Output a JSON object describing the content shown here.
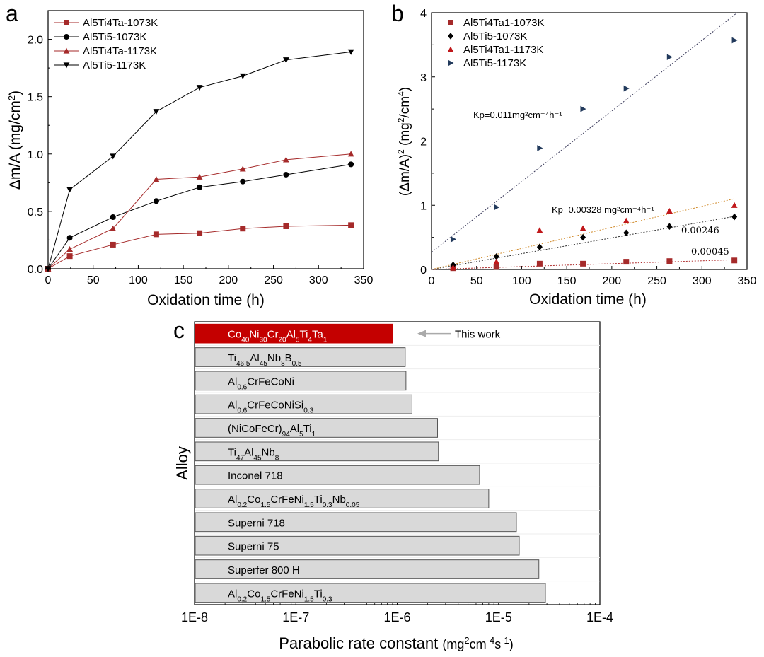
{
  "panels": {
    "a": "a",
    "b": "b",
    "c": "c"
  },
  "chart_data": [
    {
      "id": "a",
      "type": "line",
      "xlabel": "Oxidation time (h)",
      "ylabel_parts": [
        "Δm/A (mg/cm",
        "2",
        ")"
      ],
      "xlim": [
        0,
        350
      ],
      "ylim": [
        0,
        2.25
      ],
      "xticks": [
        0,
        50,
        100,
        150,
        200,
        250,
        300,
        350
      ],
      "yticks": [
        0.0,
        0.5,
        1.0,
        1.5,
        2.0
      ],
      "legend_position": "top-left",
      "series": [
        {
          "name": "Al5Ti4Ta-1073K",
          "marker": "square",
          "color": "#a52a2a",
          "x": [
            0,
            24,
            72,
            120,
            168,
            216,
            264,
            336
          ],
          "y": [
            0,
            0.11,
            0.21,
            0.3,
            0.31,
            0.35,
            0.37,
            0.38
          ]
        },
        {
          "name": "Al5Ti5-1073K",
          "marker": "circle",
          "color": "#000000",
          "x": [
            0,
            24,
            72,
            120,
            168,
            216,
            264,
            336
          ],
          "y": [
            0,
            0.27,
            0.45,
            0.59,
            0.71,
            0.76,
            0.82,
            0.91
          ]
        },
        {
          "name": "Al5Ti4Ta-1173K",
          "marker": "triangle-up",
          "color": "#a52a2a",
          "x": [
            0,
            24,
            72,
            120,
            168,
            216,
            264,
            336
          ],
          "y": [
            0,
            0.17,
            0.35,
            0.78,
            0.8,
            0.87,
            0.95,
            1.0
          ]
        },
        {
          "name": "Al5Ti5-1173K",
          "marker": "triangle-down",
          "color": "#000000",
          "x": [
            0,
            24,
            72,
            120,
            168,
            216,
            264,
            336
          ],
          "y": [
            0,
            0.69,
            0.98,
            1.37,
            1.58,
            1.68,
            1.82,
            1.89
          ]
        }
      ]
    },
    {
      "id": "b",
      "type": "scatter",
      "xlabel": "Oxidation time (h)",
      "ylabel_parts": [
        "(Δm/A)",
        "2",
        " (mg",
        "2",
        "/cm",
        "4",
        ")"
      ],
      "xlim": [
        0,
        350
      ],
      "ylim": [
        0,
        4
      ],
      "xticks": [
        0,
        50,
        100,
        150,
        200,
        250,
        300,
        350
      ],
      "yticks": [
        0,
        1,
        2,
        3,
        4
      ],
      "legend_position": "top-left",
      "series": [
        {
          "name": "Al5Ti4Ta1-1073K",
          "marker": "square",
          "color": "#a52a2a",
          "x": [
            24,
            72,
            120,
            168,
            216,
            264,
            336
          ],
          "y": [
            0.02,
            0.04,
            0.09,
            0.09,
            0.12,
            0.13,
            0.14
          ],
          "fit": {
            "slope": 0.00045,
            "intercept": 0.0,
            "color": "#b03030"
          }
        },
        {
          "name": "Al5Ti5-1073K",
          "marker": "diamond",
          "color": "#000000",
          "x": [
            24,
            72,
            120,
            168,
            216,
            264,
            336
          ],
          "y": [
            0.07,
            0.2,
            0.35,
            0.5,
            0.57,
            0.67,
            0.82
          ],
          "fit": {
            "slope": 0.00246,
            "intercept": 0.0,
            "color": "#333333"
          }
        },
        {
          "name": "Al5Ti4Ta1-1173K",
          "marker": "triangle-up",
          "color": "#c0181b",
          "x": [
            24,
            72,
            120,
            168,
            216,
            264,
            336
          ],
          "y": [
            0.03,
            0.12,
            0.61,
            0.64,
            0.76,
            0.91,
            1.0
          ],
          "fit": {
            "slope": 0.00328,
            "intercept": 0.0,
            "color": "#d08a2a"
          }
        },
        {
          "name": "Al5Ti5-1173K",
          "marker": "triangle-right",
          "color": "#223a5c",
          "x": [
            24,
            72,
            120,
            168,
            216,
            264,
            336
          ],
          "y": [
            0.47,
            0.97,
            1.89,
            2.5,
            2.82,
            3.31,
            3.57
          ],
          "fit": {
            "slope": 0.011,
            "intercept": 0.27,
            "color": "#3a3a5a"
          }
        }
      ],
      "annotations": {
        "kp_1173_ti5": "Kp=0.011mg²cm⁻⁴h⁻¹",
        "kp_1173_ta": "Kp=0.00328 mg²cm⁻⁴h⁻¹",
        "kp_1073_ti5": "0.00246",
        "kp_1073_ta": "0.00045"
      }
    },
    {
      "id": "c",
      "type": "bar",
      "orientation": "horizontal",
      "scale": "log",
      "ylabel": "Alloy",
      "xlabel": "Parabolic rate constant ",
      "xlabel_units": [
        "mg",
        "2",
        "cm",
        "-4",
        "s",
        "-1",
        ""
      ],
      "xlim": [
        1e-08,
        0.0001
      ],
      "xtick_labels": [
        "1E-8",
        "1E-7",
        "1E-6",
        "1E-5",
        "1E-4"
      ],
      "highlight_color": "#c40000",
      "bar_color": "#d9d9d9",
      "pointer_label": "This work",
      "categories": [
        [
          [
            "Co",
            ""
          ],
          [
            "40",
            "sub"
          ],
          [
            "Ni",
            ""
          ],
          [
            "30",
            "sub"
          ],
          [
            "Cr",
            ""
          ],
          [
            "20",
            "sub"
          ],
          [
            "Al",
            ""
          ],
          [
            "5",
            "sub"
          ],
          [
            "Ti",
            ""
          ],
          [
            "4",
            "sub"
          ],
          [
            "Ta",
            ""
          ],
          [
            "1",
            "sub"
          ]
        ],
        [
          [
            "Ti",
            ""
          ],
          [
            "46.5",
            "sub"
          ],
          [
            "Al",
            ""
          ],
          [
            "45",
            "sub"
          ],
          [
            "Nb",
            ""
          ],
          [
            "8",
            "sub"
          ],
          [
            "B",
            ""
          ],
          [
            "0.5",
            "sub"
          ]
        ],
        [
          [
            "Al",
            ""
          ],
          [
            "0.6",
            "sub"
          ],
          [
            "CrFeCoNi",
            ""
          ]
        ],
        [
          [
            "Al",
            ""
          ],
          [
            "0.6",
            "sub"
          ],
          [
            "CrFeCoNiSi",
            ""
          ],
          [
            "0.3",
            "sub"
          ]
        ],
        [
          [
            "(NiCoFeCr)",
            ""
          ],
          [
            "94",
            "sub"
          ],
          [
            "Al",
            ""
          ],
          [
            "5",
            "sub"
          ],
          [
            "Ti",
            ""
          ],
          [
            "1",
            "sub"
          ]
        ],
        [
          [
            "Ti",
            ""
          ],
          [
            "47",
            "sub"
          ],
          [
            "Al",
            ""
          ],
          [
            "45",
            "sub"
          ],
          [
            "Nb",
            ""
          ],
          [
            "8",
            "sub"
          ]
        ],
        [
          [
            "Inconel 718",
            ""
          ]
        ],
        [
          [
            "Al",
            ""
          ],
          [
            "0.2",
            "sub"
          ],
          [
            "Co",
            ""
          ],
          [
            "1.5",
            "sub"
          ],
          [
            "CrFeNi",
            ""
          ],
          [
            "1.5",
            "sub"
          ],
          [
            "Ti",
            ""
          ],
          [
            "0.3",
            "sub"
          ],
          [
            "Nb",
            ""
          ],
          [
            "0.05",
            "sub"
          ]
        ],
        [
          [
            "Superni 718",
            ""
          ]
        ],
        [
          [
            "Superni 75",
            ""
          ]
        ],
        [
          [
            "Superfer 800 H",
            ""
          ]
        ],
        [
          [
            "Al",
            ""
          ],
          [
            "0.2",
            "sub"
          ],
          [
            "Co",
            ""
          ],
          [
            "1.5",
            "sub"
          ],
          [
            "CrFeNi",
            ""
          ],
          [
            "1.5",
            "sub"
          ],
          [
            "Ti",
            ""
          ],
          [
            "0.3",
            "sub"
          ]
        ]
      ],
      "values": [
        9e-07,
        1.2e-06,
        1.22e-06,
        1.4e-06,
        2.5e-06,
        2.55e-06,
        6.5e-06,
        8e-06,
        1.5e-05,
        1.6e-05,
        2.5e-05,
        2.9e-05
      ]
    }
  ]
}
